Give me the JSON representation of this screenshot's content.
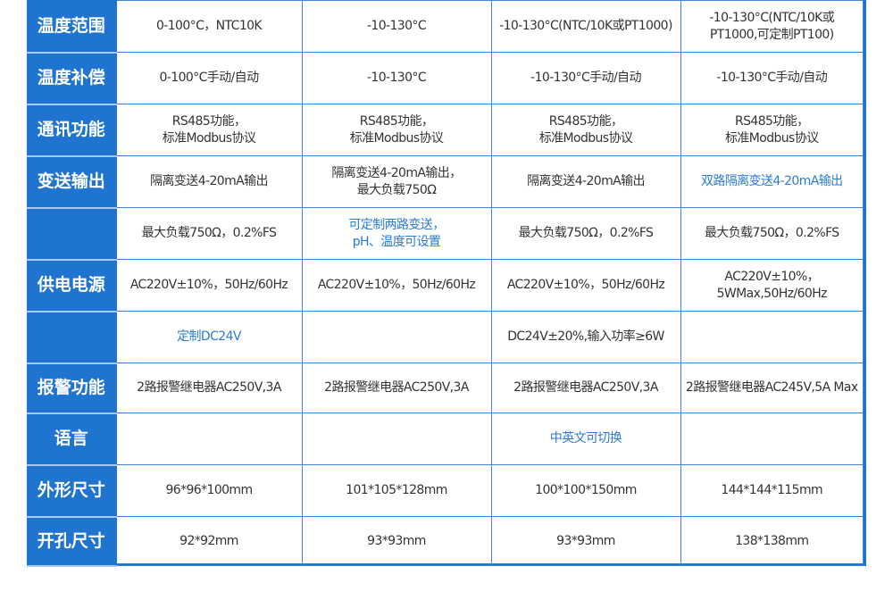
{
  "colors": {
    "label_bg": "#1f74d0",
    "border": "#3d86d8",
    "text": "#333333",
    "highlight_text": "#2a7ad6"
  },
  "rows": [
    {
      "label": "温度范围",
      "cells": [
        {
          "text": "0-100°C，NTC10K"
        },
        {
          "text": "-10-130°C"
        },
        {
          "text": "-10-130°C(NTC/10K或PT1000)"
        },
        {
          "text": "-10-130°C(NTC/10K或\nPT1000,可定制PT100)"
        }
      ]
    },
    {
      "label": "温度补偿",
      "cells": [
        {
          "text": "0-100°C手动/自动"
        },
        {
          "text": "-10-130°C"
        },
        {
          "text": "-10-130°C手动/自动"
        },
        {
          "text": "-10-130°C手动/自动"
        }
      ]
    },
    {
      "label": "通讯功能",
      "cells": [
        {
          "text": "RS485功能，\n标准Modbus协议"
        },
        {
          "text": "RS485功能，\n标准Modbus协议"
        },
        {
          "text": "RS485功能，\n标准Modbus协议"
        },
        {
          "text": "RS485功能，\n标准Modbus协议"
        }
      ]
    },
    {
      "label": "变送输出",
      "cells": [
        {
          "text": "隔离变送4-20mA输出"
        },
        {
          "text": "隔离变送4-20mA输出，\n最大负载750Ω"
        },
        {
          "text": "隔离变送4-20mA输出"
        },
        {
          "text": "双路隔离变送4-20mA输出",
          "highlight": true
        }
      ]
    },
    {
      "label": "",
      "cells": [
        {
          "text": "最大负载750Ω，0.2%FS"
        },
        {
          "text": "可定制两路变送，\npH、温度可设置",
          "highlight": true
        },
        {
          "text": "最大负载750Ω，0.2%FS"
        },
        {
          "text": "最大负载750Ω，0.2%FS"
        }
      ]
    },
    {
      "label": "供电电源",
      "cells": [
        {
          "text": "AC220V±10%，50Hz/60Hz"
        },
        {
          "text": "AC220V±10%，50Hz/60Hz"
        },
        {
          "text": "AC220V±10%，50Hz/60Hz"
        },
        {
          "text": "AC220V±10%，\n5WMax,50Hz/60Hz"
        }
      ]
    },
    {
      "label": "",
      "cells": [
        {
          "text": "定制DC24V",
          "highlight": true
        },
        {
          "text": ""
        },
        {
          "text": "DC24V±20%,输入功率≥6W"
        },
        {
          "text": ""
        }
      ]
    },
    {
      "label": "报警功能",
      "cells": [
        {
          "text": "2路报警继电器AC250V,3A"
        },
        {
          "text": "2路报警继电器AC250V,3A"
        },
        {
          "text": "2路报警继电器AC250V,3A"
        },
        {
          "text": "2路报警继电器AC245V,5A Max"
        }
      ]
    },
    {
      "label": "语言",
      "cells": [
        {
          "text": ""
        },
        {
          "text": ""
        },
        {
          "text": "中英文可切换",
          "highlight": true
        },
        {
          "text": ""
        }
      ]
    },
    {
      "label": "外形尺寸",
      "cells": [
        {
          "text": "96*96*100mm"
        },
        {
          "text": "101*105*128mm"
        },
        {
          "text": "100*100*150mm"
        },
        {
          "text": "144*144*115mm"
        }
      ]
    },
    {
      "label": "开孔尺寸",
      "cells": [
        {
          "text": "92*92mm"
        },
        {
          "text": "93*93mm"
        },
        {
          "text": "93*93mm"
        },
        {
          "text": "138*138mm"
        }
      ]
    }
  ]
}
